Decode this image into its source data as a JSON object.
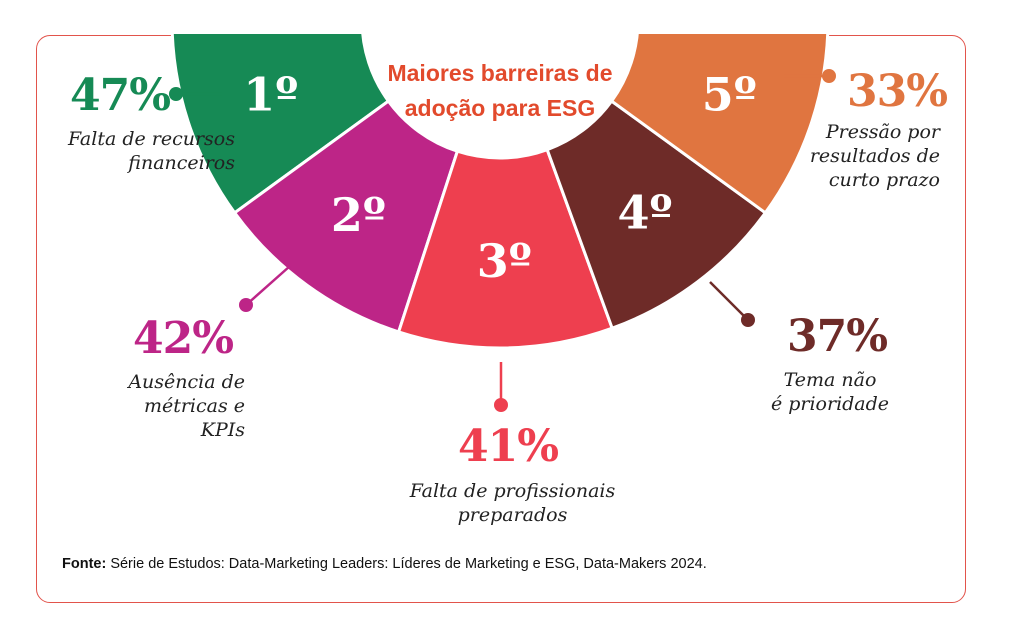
{
  "chart_data": {
    "type": "pie",
    "title": "Maiores barreiras de adoção para ESG",
    "categories": [
      "Falta de recursos financeiros",
      "Ausência de métricas e KPIs",
      "Falta de profissionais preparados",
      "Tema não é prioridade",
      "Pressão por resultados de curto prazo"
    ],
    "values": [
      47,
      42,
      41,
      37,
      33
    ],
    "ranks": [
      "1º",
      "2º",
      "3º",
      "4º",
      "5º"
    ],
    "value_labels": [
      "47%",
      "42%",
      "41%",
      "37%",
      "33%"
    ],
    "colors": [
      "#168a55",
      "#bd2587",
      "#ee3f4f",
      "#6e2b28",
      "#e07540"
    ]
  },
  "labels": {
    "l1": "Falta de recursos\nfinanceiros",
    "l2": "Ausência de\nmétricas e KPIs",
    "l3": "Falta de profissionais\npreparados",
    "l4": "Tema não\né prioridade",
    "l5": "Pressão por\nresultados de\ncurto prazo"
  },
  "source": {
    "prefix": "Fonte:",
    "text": " Série de Estudos: Data-Marketing Leaders: Líderes de Marketing e ESG, Data-Makers 2024."
  }
}
